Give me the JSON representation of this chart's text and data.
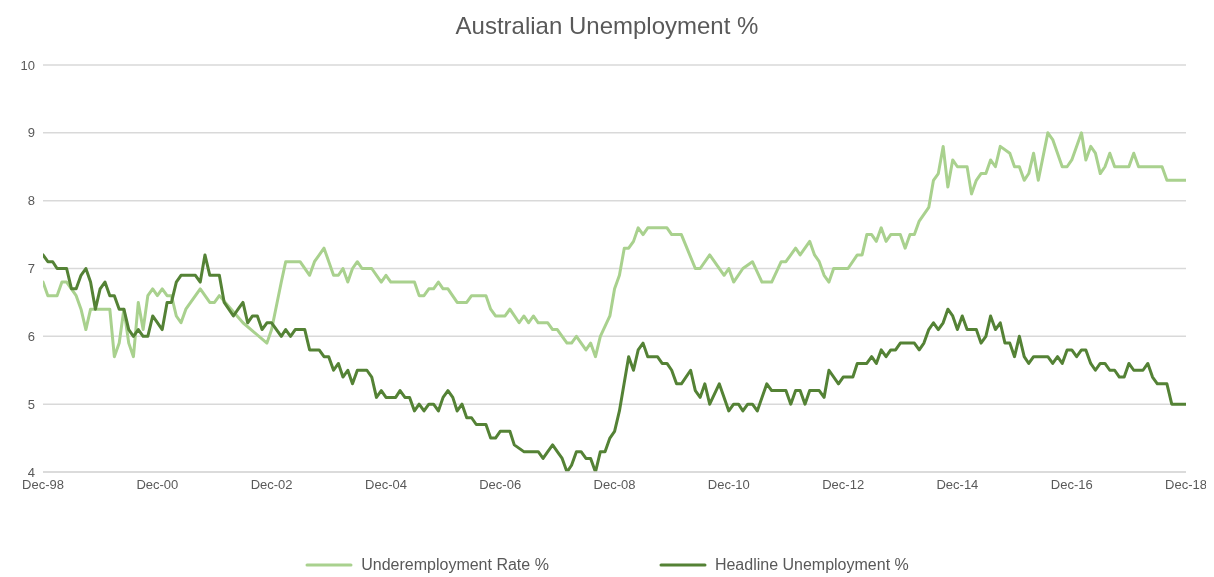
{
  "chart_data": {
    "type": "line",
    "title": "Australian Unemployment %",
    "ylim": [
      4,
      10
    ],
    "yticks": [
      4,
      5,
      6,
      7,
      8,
      9,
      10
    ],
    "xlim": [
      "1998-12",
      "2018-12"
    ],
    "xticks": [
      {
        "value": "1998-12",
        "label": "Dec-98"
      },
      {
        "value": "2000-12",
        "label": "Dec-00"
      },
      {
        "value": "2002-12",
        "label": "Dec-02"
      },
      {
        "value": "2004-12",
        "label": "Dec-04"
      },
      {
        "value": "2006-12",
        "label": "Dec-06"
      },
      {
        "value": "2008-12",
        "label": "Dec-08"
      },
      {
        "value": "2010-12",
        "label": "Dec-10"
      },
      {
        "value": "2012-12",
        "label": "Dec-12"
      },
      {
        "value": "2014-12",
        "label": "Dec-14"
      },
      {
        "value": "2016-12",
        "label": "Dec-16"
      },
      {
        "value": "2018-12",
        "label": "Dec-18"
      }
    ],
    "grid": "y",
    "legend": "bottom",
    "series": [
      {
        "name": "Underemployment Rate %",
        "color": "#a9d18e",
        "x": [
          "1998-12",
          "1999-01",
          "1999-03",
          "1999-04",
          "1999-05",
          "1999-07",
          "1999-08",
          "1999-09",
          "1999-10",
          "2000-02",
          "2000-03",
          "2000-04",
          "2000-05",
          "2000-06",
          "2000-07",
          "2000-08",
          "2000-09",
          "2000-10",
          "2000-11",
          "2000-12",
          "2001-01",
          "2001-02",
          "2001-03",
          "2001-04",
          "2001-05",
          "2001-06",
          "2001-09",
          "2001-11",
          "2001-12",
          "2002-01",
          "2002-06",
          "2002-11",
          "2002-12",
          "2003-02",
          "2003-03",
          "2003-06",
          "2003-08",
          "2003-09",
          "2003-11",
          "2004-01",
          "2004-02",
          "2004-03",
          "2004-04",
          "2004-05",
          "2004-06",
          "2004-07",
          "2004-09",
          "2004-11",
          "2004-12",
          "2005-01",
          "2005-06",
          "2005-07",
          "2005-08",
          "2005-09",
          "2005-10",
          "2005-11",
          "2005-12",
          "2006-01",
          "2006-03",
          "2006-05",
          "2006-06",
          "2006-09",
          "2006-10",
          "2006-11",
          "2007-01",
          "2007-02",
          "2007-04",
          "2007-05",
          "2007-06",
          "2007-07",
          "2007-08",
          "2007-10",
          "2007-11",
          "2007-12",
          "2008-02",
          "2008-03",
          "2008-04",
          "2008-06",
          "2008-07",
          "2008-08",
          "2008-09",
          "2008-11",
          "2008-12",
          "2009-01",
          "2009-02",
          "2009-03",
          "2009-04",
          "2009-05",
          "2009-06",
          "2009-07",
          "2009-11",
          "2009-12",
          "2010-02",
          "2010-05",
          "2010-06",
          "2010-08",
          "2010-11",
          "2010-12",
          "2011-01",
          "2011-03",
          "2011-05",
          "2011-07",
          "2011-09",
          "2011-11",
          "2011-12",
          "2012-02",
          "2012-03",
          "2012-05",
          "2012-06",
          "2012-07",
          "2012-08",
          "2012-09",
          "2012-10",
          "2013-01",
          "2013-03",
          "2013-04",
          "2013-05",
          "2013-06",
          "2013-07",
          "2013-08",
          "2013-09",
          "2013-10",
          "2013-12",
          "2014-01",
          "2014-02",
          "2014-03",
          "2014-04",
          "2014-06",
          "2014-07",
          "2014-08",
          "2014-09",
          "2014-10",
          "2014-11",
          "2014-12",
          "2015-02",
          "2015-03",
          "2015-04",
          "2015-05",
          "2015-06",
          "2015-07",
          "2015-08",
          "2015-09",
          "2015-11",
          "2015-12",
          "2016-01",
          "2016-02",
          "2016-03",
          "2016-04",
          "2016-05",
          "2016-07",
          "2016-08",
          "2016-10",
          "2016-11",
          "2016-12",
          "2017-02",
          "2017-03",
          "2017-04",
          "2017-05",
          "2017-06",
          "2017-07",
          "2017-08",
          "2017-09",
          "2017-12",
          "2018-01",
          "2018-02",
          "2018-07",
          "2018-08",
          "2018-12"
        ],
        "values": [
          6.8,
          6.6,
          6.6,
          6.8,
          6.8,
          6.6,
          6.4,
          6.1,
          6.4,
          6.4,
          5.7,
          5.9,
          6.4,
          5.9,
          5.7,
          6.5,
          6.1,
          6.6,
          6.7,
          6.6,
          6.7,
          6.6,
          6.6,
          6.3,
          6.2,
          6.4,
          6.7,
          6.5,
          6.5,
          6.6,
          6.2,
          5.9,
          6.1,
          6.8,
          7.1,
          7.1,
          6.9,
          7.1,
          7.3,
          6.9,
          6.9,
          7.0,
          6.8,
          7.0,
          7.1,
          7.0,
          7.0,
          6.8,
          6.9,
          6.8,
          6.8,
          6.6,
          6.6,
          6.7,
          6.7,
          6.8,
          6.7,
          6.7,
          6.5,
          6.5,
          6.6,
          6.6,
          6.4,
          6.3,
          6.3,
          6.4,
          6.2,
          6.3,
          6.2,
          6.3,
          6.2,
          6.2,
          6.1,
          6.1,
          5.9,
          5.9,
          6.0,
          5.8,
          5.9,
          5.7,
          6.0,
          6.3,
          6.7,
          6.9,
          7.3,
          7.3,
          7.4,
          7.6,
          7.5,
          7.6,
          7.6,
          7.5,
          7.5,
          7.0,
          7.0,
          7.2,
          6.9,
          7.0,
          6.8,
          7.0,
          7.1,
          6.8,
          6.8,
          7.1,
          7.1,
          7.3,
          7.2,
          7.4,
          7.2,
          7.1,
          6.9,
          6.8,
          7.0,
          7.0,
          7.2,
          7.2,
          7.5,
          7.5,
          7.4,
          7.6,
          7.4,
          7.5,
          7.5,
          7.3,
          7.5,
          7.5,
          7.7,
          7.9,
          8.3,
          8.4,
          8.8,
          8.2,
          8.6,
          8.5,
          8.5,
          8.1,
          8.3,
          8.4,
          8.4,
          8.6,
          8.5,
          8.8,
          8.7,
          8.5,
          8.5,
          8.3,
          8.4,
          8.7,
          8.3,
          9.0,
          8.9,
          8.5,
          8.5,
          8.6,
          9.0,
          8.6,
          8.8,
          8.7,
          8.4,
          8.5,
          8.7,
          8.5,
          8.5,
          8.7,
          8.5,
          8.5,
          8.3,
          8.3
        ]
      },
      {
        "name": "Headline Unemployment %",
        "color": "#548235",
        "x": [
          "1998-12",
          "1999-01",
          "1999-02",
          "1999-03",
          "1999-05",
          "1999-06",
          "1999-07",
          "1999-08",
          "1999-09",
          "1999-10",
          "1999-11",
          "1999-12",
          "2000-01",
          "2000-02",
          "2000-03",
          "2000-04",
          "2000-05",
          "2000-06",
          "2000-07",
          "2000-08",
          "2000-09",
          "2000-10",
          "2000-11",
          "2001-01",
          "2001-02",
          "2001-03",
          "2001-04",
          "2001-05",
          "2001-08",
          "2001-09",
          "2001-10",
          "2001-11",
          "2002-01",
          "2002-02",
          "2002-04",
          "2002-05",
          "2002-06",
          "2002-07",
          "2002-08",
          "2002-09",
          "2002-10",
          "2002-11",
          "2002-12",
          "2003-02",
          "2003-03",
          "2003-04",
          "2003-05",
          "2003-07",
          "2003-08",
          "2003-10",
          "2003-11",
          "2003-12",
          "2004-01",
          "2004-02",
          "2004-03",
          "2004-04",
          "2004-05",
          "2004-06",
          "2004-08",
          "2004-09",
          "2004-10",
          "2004-11",
          "2004-12",
          "2005-02",
          "2005-03",
          "2005-04",
          "2005-05",
          "2005-06",
          "2005-07",
          "2005-08",
          "2005-09",
          "2005-10",
          "2005-11",
          "2005-12",
          "2006-01",
          "2006-02",
          "2006-03",
          "2006-04",
          "2006-05",
          "2006-06",
          "2006-07",
          "2006-09",
          "2006-10",
          "2006-11",
          "2006-12",
          "2007-02",
          "2007-03",
          "2007-05",
          "2007-08",
          "2007-09",
          "2007-10",
          "2007-11",
          "2007-12",
          "2008-01",
          "2008-02",
          "2008-03",
          "2008-04",
          "2008-05",
          "2008-06",
          "2008-07",
          "2008-08",
          "2008-09",
          "2008-10",
          "2008-11",
          "2008-12",
          "2009-01",
          "2009-03",
          "2009-04",
          "2009-05",
          "2009-06",
          "2009-07",
          "2009-09",
          "2009-10",
          "2009-11",
          "2009-12",
          "2010-01",
          "2010-02",
          "2010-04",
          "2010-05",
          "2010-06",
          "2010-07",
          "2010-08",
          "2010-10",
          "2010-12",
          "2011-01",
          "2011-02",
          "2011-03",
          "2011-04",
          "2011-05",
          "2011-06",
          "2011-08",
          "2011-09",
          "2011-12",
          "2012-01",
          "2012-02",
          "2012-03",
          "2012-04",
          "2012-05",
          "2012-07",
          "2012-08",
          "2012-09",
          "2012-11",
          "2012-12",
          "2013-02",
          "2013-03",
          "2013-05",
          "2013-06",
          "2013-07",
          "2013-08",
          "2013-09",
          "2013-10",
          "2013-11",
          "2013-12",
          "2014-03",
          "2014-04",
          "2014-05",
          "2014-06",
          "2014-07",
          "2014-08",
          "2014-09",
          "2014-10",
          "2014-11",
          "2014-12",
          "2015-01",
          "2015-02",
          "2015-04",
          "2015-05",
          "2015-06",
          "2015-07",
          "2015-08",
          "2015-09",
          "2015-10",
          "2015-11",
          "2015-12",
          "2016-01",
          "2016-02",
          "2016-03",
          "2016-04",
          "2016-07",
          "2016-08",
          "2016-09",
          "2016-10",
          "2016-11",
          "2016-12",
          "2017-01",
          "2017-02",
          "2017-03",
          "2017-04",
          "2017-05",
          "2017-06",
          "2017-07",
          "2017-08",
          "2017-09",
          "2017-10",
          "2017-11",
          "2017-12",
          "2018-01",
          "2018-03",
          "2018-04",
          "2018-05",
          "2018-06",
          "2018-08",
          "2018-09",
          "2018-12"
        ],
        "values": [
          7.2,
          7.1,
          7.1,
          7.0,
          7.0,
          6.7,
          6.7,
          6.9,
          7.0,
          6.8,
          6.4,
          6.7,
          6.8,
          6.6,
          6.6,
          6.4,
          6.4,
          6.1,
          6.0,
          6.1,
          6.0,
          6.0,
          6.3,
          6.1,
          6.5,
          6.5,
          6.8,
          6.9,
          6.9,
          6.8,
          7.2,
          6.9,
          6.9,
          6.5,
          6.3,
          6.4,
          6.5,
          6.2,
          6.3,
          6.3,
          6.1,
          6.2,
          6.2,
          6.0,
          6.1,
          6.0,
          6.1,
          6.1,
          5.8,
          5.8,
          5.7,
          5.7,
          5.5,
          5.6,
          5.4,
          5.5,
          5.3,
          5.5,
          5.5,
          5.4,
          5.1,
          5.2,
          5.1,
          5.1,
          5.2,
          5.1,
          5.1,
          4.9,
          5.0,
          4.9,
          5.0,
          5.0,
          4.9,
          5.1,
          5.2,
          5.1,
          4.9,
          5.0,
          4.8,
          4.8,
          4.7,
          4.7,
          4.5,
          4.5,
          4.6,
          4.6,
          4.4,
          4.3,
          4.3,
          4.2,
          4.3,
          4.4,
          4.3,
          4.2,
          4.0,
          4.1,
          4.3,
          4.3,
          4.2,
          4.2,
          4.0,
          4.3,
          4.3,
          4.5,
          4.6,
          4.9,
          5.7,
          5.5,
          5.8,
          5.9,
          5.7,
          5.7,
          5.6,
          5.6,
          5.5,
          5.3,
          5.3,
          5.5,
          5.2,
          5.1,
          5.3,
          5.0,
          5.3,
          4.9,
          5.0,
          5.0,
          4.9,
          5.0,
          5.0,
          4.9,
          5.3,
          5.2,
          5.2,
          5.0,
          5.2,
          5.2,
          5.0,
          5.2,
          5.2,
          5.1,
          5.5,
          5.3,
          5.4,
          5.4,
          5.6,
          5.6,
          5.7,
          5.6,
          5.8,
          5.7,
          5.8,
          5.8,
          5.9,
          5.9,
          5.8,
          5.9,
          6.1,
          6.2,
          6.1,
          6.2,
          6.4,
          6.3,
          6.1,
          6.3,
          6.1,
          6.1,
          5.9,
          6.0,
          6.3,
          6.1,
          6.2,
          5.9,
          5.9,
          5.7,
          6.0,
          5.7,
          5.6,
          5.7,
          5.7,
          5.6,
          5.7,
          5.6,
          5.8,
          5.8,
          5.7,
          5.8,
          5.8,
          5.6,
          5.5,
          5.6,
          5.6,
          5.5,
          5.5,
          5.4,
          5.4,
          5.6,
          5.5,
          5.5,
          5.6,
          5.4,
          5.3,
          5.3,
          5.0,
          5.0
        ]
      }
    ]
  }
}
